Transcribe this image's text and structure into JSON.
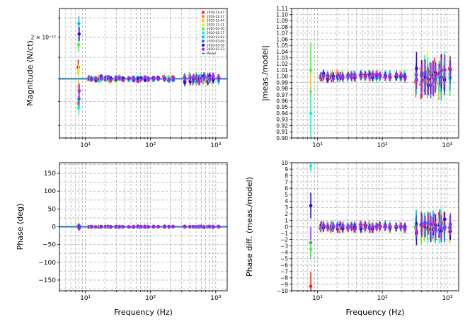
{
  "chart_data": [
    {
      "type": "scatter",
      "panel": "top-left",
      "ylabel": "Magnitude (N/ct)",
      "xlabel": "",
      "xscale": "log",
      "xlim": [
        4,
        1500
      ],
      "ylim": [
        1.55e-12,
        2.15e-12
      ],
      "ytick_labels": [
        {
          "value": 2e-12,
          "label": "2 × 10⁻¹²"
        }
      ],
      "xtick_labels": [
        {
          "value": 10,
          "label": "10¹"
        },
        {
          "value": 100,
          "label": "10²"
        },
        {
          "value": 1000,
          "label": "10³"
        }
      ],
      "legend": {
        "placement": "top-right",
        "entries": [
          "2019-11-07",
          "2019-11-27",
          "2019-12-04",
          "2019-12-11",
          "2020-02-10",
          "2020-02-17",
          "2020-03-02",
          "2020-03-09",
          "2020-03-16",
          "2020-03-23",
          "Model"
        ]
      },
      "series": [
        {
          "name": "Model",
          "x": [
            4,
            1500
          ],
          "y": [
            1.8e-12,
            1.8e-12
          ]
        }
      ],
      "notes": "measurement points clustered near model value ~1.8e-12; large scatter at 7.9 Hz"
    },
    {
      "type": "scatter",
      "panel": "top-right",
      "ylabel": "|meas./model|",
      "xscale": "log",
      "xlim": [
        4,
        1500
      ],
      "ylim": [
        0.9,
        1.11
      ],
      "ytick_labels": [
        "0.90",
        "0.91",
        "0.92",
        "0.93",
        "0.94",
        "0.95",
        "0.96",
        "0.97",
        "0.98",
        "0.99",
        "1.00",
        "1.01",
        "1.02",
        "1.03",
        "1.04",
        "1.05",
        "1.06",
        "1.07",
        "1.08",
        "1.09",
        "1.10",
        "1.11"
      ],
      "xtick_labels": [
        {
          "value": 10,
          "label": "10¹"
        },
        {
          "value": 100,
          "label": "10²"
        },
        {
          "value": 1000,
          "label": "10³"
        }
      ]
    },
    {
      "type": "scatter",
      "panel": "bottom-left",
      "ylabel": "Phase (deg)",
      "xlabel": "Frequency (Hz)",
      "xscale": "log",
      "xlim": [
        4,
        1500
      ],
      "ylim": [
        -180,
        180
      ],
      "ytick_labels": [
        "150",
        "100",
        "50",
        "0",
        "−50",
        "−100",
        "−150"
      ],
      "xtick_labels": [
        {
          "value": 10,
          "label": "10¹"
        },
        {
          "value": 100,
          "label": "10²"
        },
        {
          "value": 1000,
          "label": "10³"
        }
      ]
    },
    {
      "type": "scatter",
      "panel": "bottom-right",
      "ylabel": "Phase diff. (meas./model)",
      "xlabel": "Frequency (Hz)",
      "xscale": "log",
      "xlim": [
        4,
        1500
      ],
      "ylim": [
        -10,
        10
      ],
      "ytick_labels": [
        "10",
        "9",
        "8",
        "7",
        "6",
        "5",
        "4",
        "3",
        "2",
        "1",
        "0",
        "−1",
        "−2",
        "−3",
        "−4",
        "−5",
        "−6",
        "−7",
        "−8",
        "−9",
        "−10"
      ],
      "xtick_labels": [
        {
          "value": 10,
          "label": "10¹"
        },
        {
          "value": 100,
          "label": "10²"
        },
        {
          "value": 1000,
          "label": "10³"
        }
      ]
    }
  ],
  "measurement_frequencies": [
    7.9,
    11.3,
    12.3,
    14.3,
    16.3,
    17.3,
    20.3,
    22.3,
    24.3,
    29.3,
    33.3,
    37.3,
    46.3,
    54.3,
    63.3,
    70.3,
    81.3,
    91.3,
    110.3,
    130.3,
    162.3,
    191.3,
    220.3,
    331.3,
    400.3,
    450.3,
    501.3,
    551.3,
    602.3,
    652.3,
    751.3,
    801.3,
    901.3,
    1101.3
  ],
  "series_colors": [
    "#ff1a1a",
    "#ff7f00",
    "#ffcc00",
    "#d9f70a",
    "#33ff33",
    "#00ffcc",
    "#00bfff",
    "#1a66ff",
    "#3300e6",
    "#b31aff"
  ],
  "model_color": "#1f77b4"
}
